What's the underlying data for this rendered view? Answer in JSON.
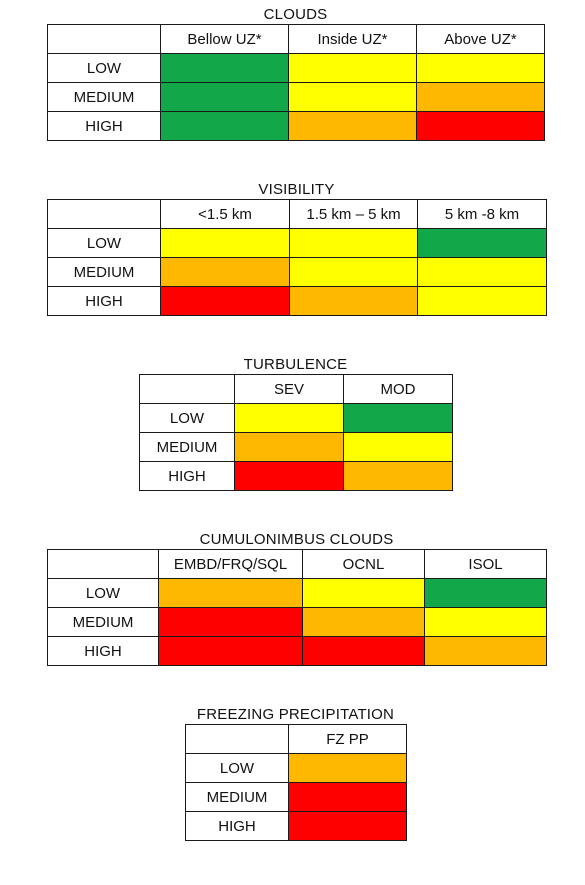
{
  "colors": {
    "green": "#12a84a",
    "yellow": "#ffff00",
    "orange": "#ffb800",
    "red": "#ff0000"
  },
  "tables": {
    "clouds": {
      "title": "CLOUDS",
      "columns": [
        "Bellow  UZ*",
        "Inside UZ*",
        "Above  UZ*"
      ],
      "rows": [
        {
          "label": "LOW",
          "levels": [
            "green",
            "yellow",
            "yellow"
          ]
        },
        {
          "label": "MEDIUM",
          "levels": [
            "green",
            "yellow",
            "orange"
          ]
        },
        {
          "label": "HIGH",
          "levels": [
            "green",
            "orange",
            "red"
          ]
        }
      ]
    },
    "visibility": {
      "title": "VISIBILITY",
      "columns": [
        "<1.5 km",
        "1.5 km – 5 km",
        "5 km -8 km"
      ],
      "rows": [
        {
          "label": "LOW",
          "levels": [
            "yellow",
            "yellow",
            "green"
          ]
        },
        {
          "label": "MEDIUM",
          "levels": [
            "orange",
            "yellow",
            "yellow"
          ]
        },
        {
          "label": "HIGH",
          "levels": [
            "red",
            "orange",
            "yellow"
          ]
        }
      ]
    },
    "turbulence": {
      "title": "TURBULENCE",
      "columns": [
        "SEV",
        "MOD"
      ],
      "rows": [
        {
          "label": "LOW",
          "levels": [
            "yellow",
            "green"
          ]
        },
        {
          "label": "MEDIUM",
          "levels": [
            "orange",
            "yellow"
          ]
        },
        {
          "label": "HIGH",
          "levels": [
            "red",
            "orange"
          ]
        }
      ]
    },
    "cumulonimbus": {
      "title": "CUMULONIMBUS  CLOUDS",
      "columns": [
        "EMBD/FRQ/SQL",
        "OCNL",
        "ISOL"
      ],
      "rows": [
        {
          "label": "LOW",
          "levels": [
            "orange",
            "yellow",
            "green"
          ]
        },
        {
          "label": "MEDIUM",
          "levels": [
            "red",
            "orange",
            "yellow"
          ]
        },
        {
          "label": "HIGH",
          "levels": [
            "red",
            "red",
            "orange"
          ]
        }
      ]
    },
    "freezing": {
      "title": "FREEZING PRECIPITATION",
      "columns": [
        "FZ PP"
      ],
      "rows": [
        {
          "label": "LOW",
          "levels": [
            "orange"
          ]
        },
        {
          "label": "MEDIUM",
          "levels": [
            "red"
          ]
        },
        {
          "label": "HIGH",
          "levels": [
            "red"
          ]
        }
      ]
    }
  }
}
